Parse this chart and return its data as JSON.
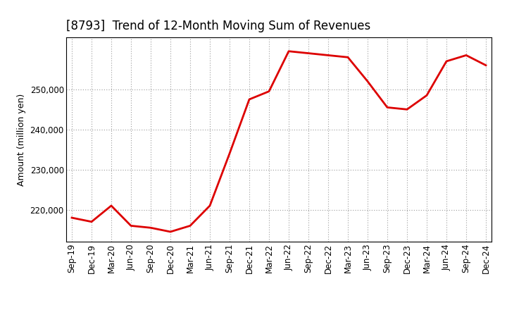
{
  "title": "[8793]  Trend of 12-Month Moving Sum of Revenues",
  "ylabel": "Amount (million yen)",
  "line_color": "#dd0000",
  "bg_color": "#ffffff",
  "plot_bg_color": "#ffffff",
  "grid_color": "#999999",
  "x_labels": [
    "Sep-19",
    "Dec-19",
    "Mar-20",
    "Jun-20",
    "Sep-20",
    "Dec-20",
    "Mar-21",
    "Jun-21",
    "Sep-21",
    "Dec-21",
    "Mar-22",
    "Jun-22",
    "Sep-22",
    "Dec-22",
    "Mar-23",
    "Jun-23",
    "Sep-23",
    "Dec-23",
    "Mar-24",
    "Jun-24",
    "Sep-24",
    "Dec-24"
  ],
  "y_values": [
    218000,
    217000,
    221000,
    216000,
    215500,
    214500,
    216000,
    221000,
    234000,
    247500,
    249500,
    259500,
    259000,
    258500,
    258000,
    252000,
    245500,
    245000,
    248500,
    257000,
    258500,
    256000
  ],
  "ylim_min": 212000,
  "ylim_max": 263000,
  "yticks": [
    220000,
    230000,
    240000,
    250000
  ],
  "line_width": 2.0,
  "title_fontsize": 12,
  "ylabel_fontsize": 9,
  "tick_labelsize": 8.5
}
